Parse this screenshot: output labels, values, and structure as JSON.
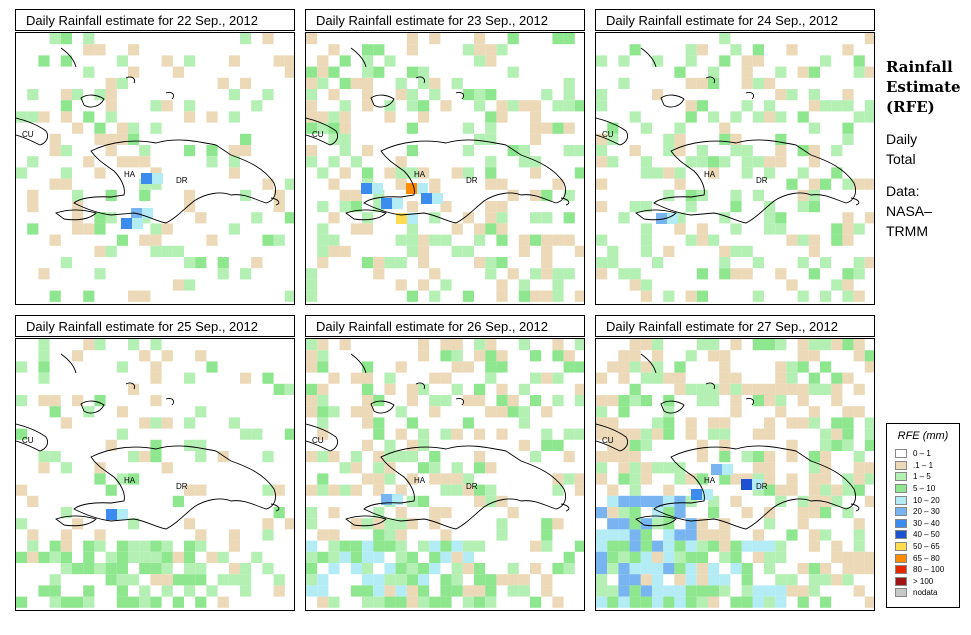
{
  "panels": [
    {
      "title": "Daily Rainfall estimate for  22 Sep., 2012",
      "region_labels": [
        "CU",
        "HA",
        "DR"
      ]
    },
    {
      "title": "Daily Rainfall estimate for  23 Sep., 2012",
      "region_labels": [
        "CU",
        "HA",
        "DR"
      ]
    },
    {
      "title": "Daily Rainfall estimate for  24 Sep., 2012",
      "region_labels": [
        "CU",
        "HA",
        "DR"
      ]
    },
    {
      "title": "Daily Rainfall estimate for  25 Sep., 2012",
      "region_labels": [
        "CU",
        "HA",
        "DR"
      ]
    },
    {
      "title": "Daily Rainfall estimate for  26 Sep., 2012",
      "region_labels": [
        "CU",
        "HA",
        "DR"
      ]
    },
    {
      "title": "Daily Rainfall estimate for  27 Sep., 2012",
      "region_labels": [
        "CU",
        "HA",
        "DR"
      ]
    }
  ],
  "side": {
    "title_line1": "Rainfall",
    "title_line2": "Estimate",
    "title_line3": "(RFE)",
    "daily": "Daily",
    "total": "Total",
    "data_label": "Data:",
    "source1": "NASA–",
    "source2": "TRMM"
  },
  "legend": {
    "title": "RFE (mm)",
    "items": [
      {
        "label": "0 – 1",
        "color": "#ffffff"
      },
      {
        "label": ".1 – 1",
        "color": "#ecd9b8"
      },
      {
        "label": "1 – 5",
        "color": "#b4f0b4"
      },
      {
        "label": "5 – 10",
        "color": "#8ee68e"
      },
      {
        "label": "10 – 20",
        "color": "#b4ecf6"
      },
      {
        "label": "20 – 30",
        "color": "#78b4f0"
      },
      {
        "label": "30 – 40",
        "color": "#3c8cf0"
      },
      {
        "label": "40 – 50",
        "color": "#1e50d2"
      },
      {
        "label": "50 – 65",
        "color": "#ffdc50"
      },
      {
        "label": "65 – 80",
        "color": "#ff8c00"
      },
      {
        "label": "80 – 100",
        "color": "#e62800"
      },
      {
        "label": "> 100",
        "color": "#a01414"
      },
      {
        "label": "nodata",
        "color": "#c8c8c8"
      }
    ]
  }
}
